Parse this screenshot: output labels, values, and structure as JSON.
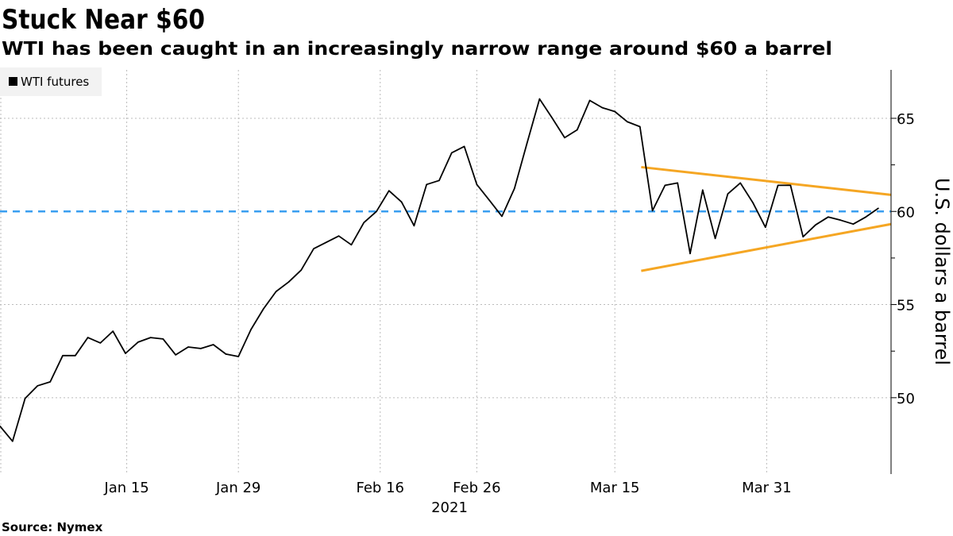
{
  "chart_data": {
    "type": "line",
    "title": "Stuck Near $60",
    "subtitle": "WTI has been caught in an increasingly narrow range around $60 a barrel",
    "source": "Source: Nymex",
    "xlabel": "2021",
    "ylabel": "U.S. dollars a barrel",
    "ylim": [
      45.9,
      67.6
    ],
    "xlim": [
      0,
      71
    ],
    "yticks": [
      50,
      55,
      60,
      65
    ],
    "yminor_ticks": [
      52.5,
      57.5,
      62.5
    ],
    "xticks": [
      {
        "label": "Jan 15",
        "x": 10.1
      },
      {
        "label": "Jan 29",
        "x": 19
      },
      {
        "label": "Feb 16",
        "x": 30.3
      },
      {
        "label": "Feb 26",
        "x": 38
      },
      {
        "label": "Mar 15",
        "x": 49
      },
      {
        "label": "Mar 31",
        "x": 61.1
      }
    ],
    "legend": {
      "position": "top-left",
      "entries": [
        {
          "name": "WTI futures",
          "color": "#000000"
        }
      ]
    },
    "grid": true,
    "series": [
      {
        "name": "WTI futures",
        "color": "#000000",
        "values": [
          48.47,
          47.66,
          49.96,
          50.64,
          50.85,
          52.26,
          52.26,
          53.23,
          52.94,
          53.57,
          52.38,
          52.98,
          53.23,
          53.15,
          52.3,
          52.72,
          52.64,
          52.85,
          52.34,
          52.21,
          53.66,
          54.77,
          55.7,
          56.21,
          56.85,
          58.0,
          58.34,
          58.68,
          58.21,
          59.4,
          60.0,
          61.11,
          60.51,
          59.23,
          61.45,
          61.66,
          63.15,
          63.49,
          61.45,
          60.6,
          59.74,
          61.23,
          63.66,
          66.04,
          65.02,
          63.96,
          64.38,
          65.96,
          65.57,
          65.36,
          64.81,
          64.55,
          60.04,
          61.4,
          61.53,
          57.74,
          61.15,
          58.55,
          60.94,
          61.53,
          60.47,
          59.15,
          61.4,
          61.4,
          58.64,
          59.28,
          59.7,
          59.53,
          59.32,
          59.7,
          60.17
        ]
      }
    ],
    "reference_line": {
      "value": 60,
      "color": "#3a9ff0",
      "style": "dashed"
    },
    "trend_lines": [
      {
        "name": "upper",
        "color": "#f5a623",
        "from": [
          51.1,
          62.38
        ],
        "to": [
          71,
          60.89
        ]
      },
      {
        "name": "lower",
        "color": "#f5a623",
        "from": [
          51.1,
          56.81
        ],
        "to": [
          71,
          59.32
        ]
      }
    ]
  }
}
